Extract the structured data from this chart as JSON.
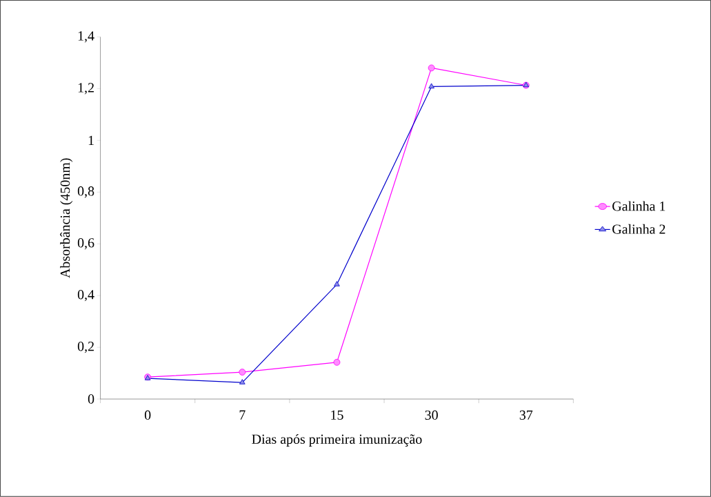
{
  "chart_data": {
    "type": "line",
    "xlabel": "Dias após primeira imunização",
    "ylabel": "Absorbância (450nm)",
    "categories": [
      "0",
      "7",
      "15",
      "30",
      "37"
    ],
    "series": [
      {
        "name": "Galinha 1",
        "color": "#ff00ff",
        "marker": "circle",
        "values": [
          0.085,
          0.104,
          0.142,
          1.28,
          1.213
        ]
      },
      {
        "name": "Galinha 2",
        "color": "#0000cc",
        "marker": "triangle",
        "values": [
          0.08,
          0.064,
          0.443,
          1.208,
          1.213
        ]
      }
    ],
    "ylim": [
      0,
      1.4
    ],
    "yticks": [
      0,
      {
        "value": 0.2,
        "label": "0,2"
      },
      {
        "value": 0.4,
        "label": "0,4"
      },
      {
        "value": 0.6,
        "label": "0,6"
      },
      {
        "value": 0.8,
        "label": "0,8"
      },
      1,
      {
        "value": 1.2,
        "label": "1,2"
      },
      {
        "value": 1.4,
        "label": "1,4"
      }
    ],
    "legend": "right",
    "grid": false
  }
}
